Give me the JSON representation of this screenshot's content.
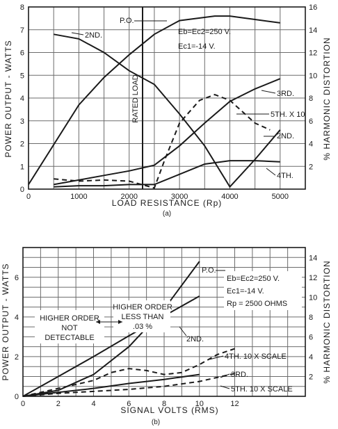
{
  "chart_data": [
    {
      "panel": "(a)",
      "type": "line",
      "xlabel": "LOAD RESISTANCE (Rp)",
      "ylabel_left": "POWER OUTPUT - WATTS",
      "ylabel_right": "% HARMONIC DISTORTION",
      "x_ticks": [
        "0",
        "1000",
        "2000",
        "3000",
        "4000",
        "5000"
      ],
      "y_left_ticks": [
        "0",
        "1",
        "2",
        "3",
        "4",
        "5",
        "6",
        "7",
        "8"
      ],
      "y_right_ticks": [
        "2",
        "4",
        "6",
        "8",
        "10",
        "12",
        "14",
        "16"
      ],
      "xlim": [
        0,
        5500
      ],
      "ylim_left": [
        0,
        8
      ],
      "ylim_right": [
        0,
        16
      ],
      "grid": true,
      "conditions": [
        "Eb=Ec2=250 V.",
        "Ec1=-14 V."
      ],
      "vline": {
        "x": 2500,
        "label": "RATED LOAD"
      },
      "series": [
        {
          "name": "P.O.",
          "axis": "left",
          "style": "solid",
          "points": [
            [
              0,
              0.2
            ],
            [
              1000,
              3.7
            ],
            [
              1500,
              4.9
            ],
            [
              2000,
              5.9
            ],
            [
              2500,
              6.8
            ],
            [
              3000,
              7.4
            ],
            [
              3700,
              7.6
            ],
            [
              4000,
              7.6
            ],
            [
              4500,
              7.45
            ],
            [
              5000,
              7.3
            ]
          ]
        },
        {
          "name": "2ND.",
          "axis": "right",
          "style": "solid",
          "points": [
            [
              500,
              13.6
            ],
            [
              1000,
              13.2
            ],
            [
              1500,
              12.0
            ],
            [
              2000,
              10.4
            ],
            [
              2500,
              9.2
            ],
            [
              3000,
              6.6
            ],
            [
              3500,
              3.8
            ],
            [
              4000,
              0.2
            ],
            [
              4500,
              2.6
            ],
            [
              5000,
              5.2
            ]
          ]
        },
        {
          "name": "3RD.",
          "axis": "right",
          "style": "solid",
          "points": [
            [
              500,
              0.4
            ],
            [
              1000,
              0.8
            ],
            [
              1500,
              1.2
            ],
            [
              2000,
              1.6
            ],
            [
              2500,
              2.1
            ],
            [
              3000,
              3.8
            ],
            [
              3500,
              5.8
            ],
            [
              4000,
              7.7
            ],
            [
              4500,
              8.8
            ],
            [
              5000,
              9.7
            ]
          ]
        },
        {
          "name": "4TH.",
          "axis": "right",
          "style": "solid",
          "points": [
            [
              500,
              0.2
            ],
            [
              1000,
              0.3
            ],
            [
              1500,
              0.3
            ],
            [
              2000,
              0.4
            ],
            [
              2500,
              0.4
            ],
            [
              3000,
              1.3
            ],
            [
              3500,
              2.2
            ],
            [
              4000,
              2.5
            ],
            [
              4500,
              2.5
            ],
            [
              5000,
              2.4
            ]
          ]
        },
        {
          "name": "5TH. X 10",
          "axis": "right",
          "style": "dashed",
          "points": [
            [
              500,
              0.9
            ],
            [
              1000,
              0.7
            ],
            [
              1500,
              0.8
            ],
            [
              2000,
              0.7
            ],
            [
              2500,
              0.1
            ],
            [
              2700,
              2.5
            ],
            [
              3000,
              5.8
            ],
            [
              3400,
              7.8
            ],
            [
              3700,
              8.3
            ],
            [
              4000,
              7.8
            ],
            [
              4300,
              6.6
            ],
            [
              4500,
              5.8
            ],
            [
              4800,
              5.2
            ]
          ]
        }
      ]
    },
    {
      "panel": "(b)",
      "type": "line",
      "xlabel": "SIGNAL VOLTS (RMS)",
      "ylabel_left": "POWER OUTPUT - WATTS",
      "ylabel_right": "% HARMONIC DISTORTION",
      "x_ticks": [
        "0",
        "2",
        "4",
        "6",
        "8",
        "10",
        "12"
      ],
      "y_left_ticks": [
        "0",
        "2",
        "4",
        "6"
      ],
      "y_right_ticks": [
        "2",
        "4",
        "6",
        "8",
        "10",
        "12",
        "14"
      ],
      "xlim": [
        0,
        16
      ],
      "ylim_left": [
        0,
        7.5
      ],
      "ylim_right": [
        0,
        15
      ],
      "grid": true,
      "conditions": [
        "Eb=Ec2=250 V.",
        "Ec1=-14 V.",
        "Rp = 2500 OHMS"
      ],
      "annotations": [
        "HIGHER ORDER",
        "NOT",
        "DETECTABLE",
        "HIGHER ORDER",
        "LESS THAN",
        ".03 %"
      ],
      "series": [
        {
          "name": "P.O.",
          "axis": "left",
          "style": "solid",
          "points": [
            [
              0,
              0
            ],
            [
              2,
              0.3
            ],
            [
              4,
              1.1
            ],
            [
              6,
              2.5
            ],
            [
              8,
              4.4
            ],
            [
              10,
              6.8
            ]
          ]
        },
        {
          "name": "2ND.",
          "axis": "right",
          "style": "solid",
          "points": [
            [
              0,
              0
            ],
            [
              2,
              2.0
            ],
            [
              4,
              4.0
            ],
            [
              6,
              6.1
            ],
            [
              8,
              8.1
            ],
            [
              10,
              10.1
            ]
          ]
        },
        {
          "name": "3RD.",
          "axis": "right",
          "style": "solid",
          "points": [
            [
              0,
              0
            ],
            [
              2,
              0.4
            ],
            [
              4,
              0.8
            ],
            [
              6,
              1.3
            ],
            [
              8,
              1.7
            ],
            [
              10,
              2.2
            ]
          ]
        },
        {
          "name": "4TH. 10 X SCALE",
          "axis": "right",
          "style": "dashed",
          "points": [
            [
              0,
              0
            ],
            [
              2,
              0.8
            ],
            [
              4,
              1.6
            ],
            [
              5,
              2.4
            ],
            [
              6,
              2.8
            ],
            [
              7,
              2.6
            ],
            [
              8,
              2.2
            ],
            [
              9,
              2.4
            ],
            [
              10,
              3.2
            ],
            [
              11,
              4.2
            ],
            [
              12,
              4.8
            ]
          ]
        },
        {
          "name": "5TH. 10 X SCALE",
          "axis": "right",
          "style": "dashed",
          "points": [
            [
              0,
              0
            ],
            [
              2,
              0.3
            ],
            [
              4,
              0.5
            ],
            [
              6,
              0.7
            ],
            [
              8,
              1.0
            ],
            [
              10,
              1.5
            ],
            [
              11,
              1.9
            ],
            [
              12,
              2.3
            ]
          ]
        }
      ]
    }
  ],
  "labels_a": {
    "po": "P.O.",
    "second": "2ND.",
    "third": "3RD.",
    "fourth": "4TH.",
    "fifth": "5TH. X 10",
    "second_right": "2ND.",
    "cond1": "Eb=Ec2=250 V.",
    "cond2": "Ec1=-14 V.",
    "rated": "RATED LOAD",
    "caption": "(a)"
  },
  "labels_b": {
    "po": "P.O.",
    "second": "2ND.",
    "third": "3RD.",
    "fourth": "4TH. 10 X SCALE",
    "fifth": "5TH. 10 X SCALE",
    "cond1": "Eb=Ec2=250 V.",
    "cond2": "Ec1=-14 V.",
    "cond3": "Rp = 2500 OHMS",
    "hi1": "HIGHER ORDER",
    "hi2": "NOT",
    "hi3": "DETECTABLE",
    "lo1": "HIGHER ORDER",
    "lo2": "LESS THAN",
    "lo3": ".03 %",
    "caption": "(b)"
  }
}
